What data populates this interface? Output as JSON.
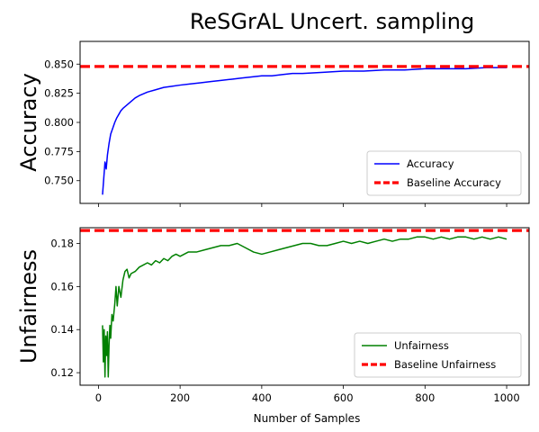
{
  "chart_data": {
    "suptitle": "ReSGrAL Uncert. sampling",
    "xlabel": "Number of Samples",
    "x_ticks": [
      0,
      200,
      400,
      600,
      800,
      1000
    ],
    "x_range": [
      -45,
      1055
    ],
    "subplots": [
      {
        "type": "line",
        "ylabel": "Accuracy",
        "ylim": [
          0.7305,
          0.8695
        ],
        "y_ticks": [
          0.75,
          0.775,
          0.8,
          0.825,
          0.85
        ],
        "y_tick_labels": [
          "0.750",
          "0.775",
          "0.800",
          "0.825",
          "0.850"
        ],
        "legend_position": "lower-right",
        "series": [
          {
            "name": "Accuracy",
            "color": "#0000ff",
            "points": [
              [
                10,
                0.738
              ],
              [
                13,
                0.752
              ],
              [
                16,
                0.766
              ],
              [
                19,
                0.76
              ],
              [
                22,
                0.772
              ],
              [
                26,
                0.782
              ],
              [
                30,
                0.79
              ],
              [
                35,
                0.795
              ],
              [
                40,
                0.8
              ],
              [
                45,
                0.804
              ],
              [
                50,
                0.807
              ],
              [
                55,
                0.81
              ],
              [
                60,
                0.812
              ],
              [
                70,
                0.815
              ],
              [
                80,
                0.818
              ],
              [
                90,
                0.821
              ],
              [
                100,
                0.823
              ],
              [
                120,
                0.826
              ],
              [
                140,
                0.828
              ],
              [
                160,
                0.83
              ],
              [
                180,
                0.831
              ],
              [
                200,
                0.832
              ],
              [
                225,
                0.833
              ],
              [
                250,
                0.834
              ],
              [
                275,
                0.835
              ],
              [
                300,
                0.836
              ],
              [
                325,
                0.837
              ],
              [
                350,
                0.838
              ],
              [
                375,
                0.839
              ],
              [
                400,
                0.84
              ],
              [
                425,
                0.84
              ],
              [
                450,
                0.841
              ],
              [
                475,
                0.842
              ],
              [
                500,
                0.842
              ],
              [
                550,
                0.843
              ],
              [
                600,
                0.844
              ],
              [
                650,
                0.844
              ],
              [
                700,
                0.845
              ],
              [
                750,
                0.845
              ],
              [
                800,
                0.846
              ],
              [
                850,
                0.846
              ],
              [
                900,
                0.846
              ],
              [
                950,
                0.847
              ],
              [
                1000,
                0.847
              ]
            ]
          }
        ],
        "baseline": {
          "name": "Baseline Accuracy",
          "value": 0.848,
          "color": "#ff0000"
        }
      },
      {
        "type": "line",
        "ylabel": "Unfairness",
        "ylim": [
          0.1142,
          0.1873
        ],
        "y_ticks": [
          0.12,
          0.14,
          0.16,
          0.18
        ],
        "y_tick_labels": [
          "0.12",
          "0.14",
          "0.16",
          "0.18"
        ],
        "legend_position": "lower-right",
        "series": [
          {
            "name": "Unfairness",
            "color": "#008000",
            "points": [
              [
                10,
                0.142
              ],
              [
                12,
                0.125
              ],
              [
                14,
                0.14
              ],
              [
                16,
                0.118
              ],
              [
                18,
                0.137
              ],
              [
                20,
                0.128
              ],
              [
                22,
                0.139
              ],
              [
                24,
                0.118
              ],
              [
                26,
                0.133
              ],
              [
                28,
                0.142
              ],
              [
                30,
                0.136
              ],
              [
                33,
                0.147
              ],
              [
                36,
                0.144
              ],
              [
                40,
                0.152
              ],
              [
                43,
                0.16
              ],
              [
                46,
                0.151
              ],
              [
                50,
                0.16
              ],
              [
                55,
                0.155
              ],
              [
                60,
                0.163
              ],
              [
                65,
                0.167
              ],
              [
                70,
                0.168
              ],
              [
                75,
                0.164
              ],
              [
                80,
                0.166
              ],
              [
                90,
                0.167
              ],
              [
                100,
                0.169
              ],
              [
                110,
                0.17
              ],
              [
                120,
                0.171
              ],
              [
                130,
                0.17
              ],
              [
                140,
                0.172
              ],
              [
                150,
                0.171
              ],
              [
                160,
                0.173
              ],
              [
                170,
                0.172
              ],
              [
                180,
                0.174
              ],
              [
                190,
                0.175
              ],
              [
                200,
                0.174
              ],
              [
                220,
                0.176
              ],
              [
                240,
                0.176
              ],
              [
                260,
                0.177
              ],
              [
                280,
                0.178
              ],
              [
                300,
                0.179
              ],
              [
                320,
                0.179
              ],
              [
                340,
                0.18
              ],
              [
                360,
                0.178
              ],
              [
                380,
                0.176
              ],
              [
                400,
                0.175
              ],
              [
                420,
                0.176
              ],
              [
                440,
                0.177
              ],
              [
                460,
                0.178
              ],
              [
                480,
                0.179
              ],
              [
                500,
                0.18
              ],
              [
                520,
                0.18
              ],
              [
                540,
                0.179
              ],
              [
                560,
                0.179
              ],
              [
                580,
                0.18
              ],
              [
                600,
                0.181
              ],
              [
                620,
                0.18
              ],
              [
                640,
                0.181
              ],
              [
                660,
                0.18
              ],
              [
                680,
                0.181
              ],
              [
                700,
                0.182
              ],
              [
                720,
                0.181
              ],
              [
                740,
                0.182
              ],
              [
                760,
                0.182
              ],
              [
                780,
                0.183
              ],
              [
                800,
                0.183
              ],
              [
                820,
                0.182
              ],
              [
                840,
                0.183
              ],
              [
                860,
                0.182
              ],
              [
                880,
                0.183
              ],
              [
                900,
                0.183
              ],
              [
                920,
                0.182
              ],
              [
                940,
                0.183
              ],
              [
                960,
                0.182
              ],
              [
                980,
                0.183
              ],
              [
                1000,
                0.182
              ]
            ]
          }
        ],
        "baseline": {
          "name": "Baseline Unfairness",
          "value": 0.186,
          "color": "#ff0000"
        }
      }
    ]
  }
}
